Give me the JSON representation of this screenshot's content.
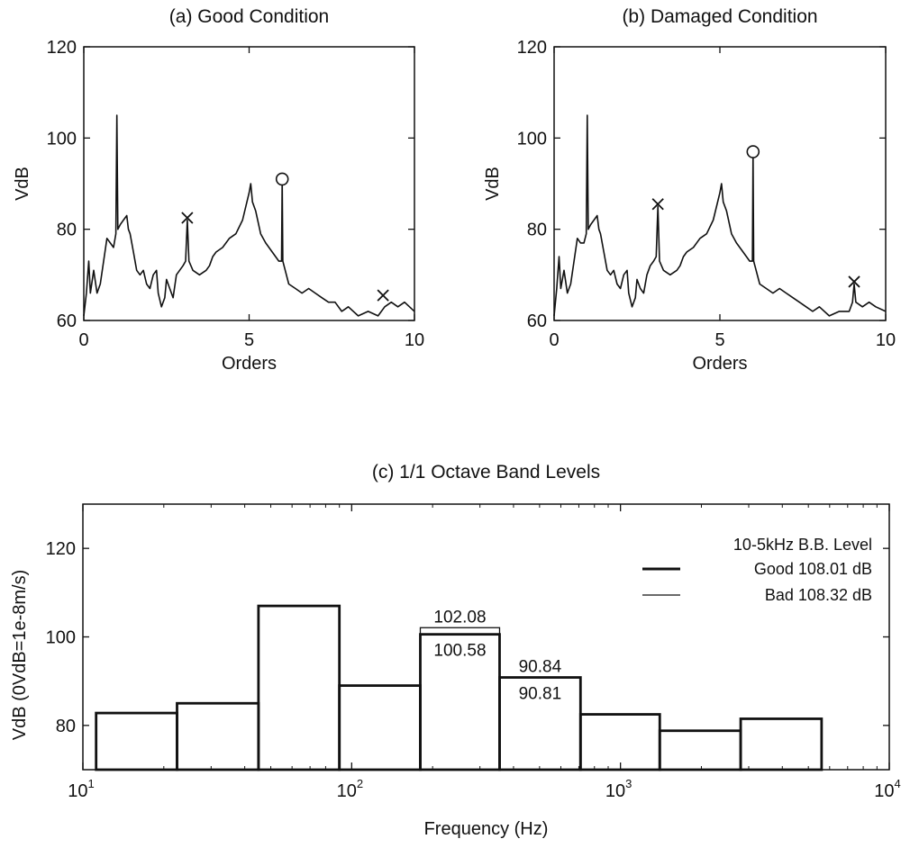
{
  "chart_data": [
    {
      "id": "a",
      "type": "line",
      "title": "(a) Good Condition",
      "xlabel": "Orders",
      "ylabel": "VdB",
      "xlim": [
        0,
        10
      ],
      "ylim": [
        60,
        120
      ],
      "xticks": [
        0,
        5,
        10
      ],
      "yticks": [
        60,
        80,
        100,
        120
      ],
      "grid": false,
      "series": [
        {
          "values": [
            [
              0,
              61
            ],
            [
              0.08,
              66
            ],
            [
              0.15,
              73
            ],
            [
              0.2,
              66
            ],
            [
              0.3,
              71
            ],
            [
              0.4,
              66
            ],
            [
              0.5,
              68
            ],
            [
              0.6,
              73
            ],
            [
              0.7,
              78
            ],
            [
              0.8,
              77
            ],
            [
              0.9,
              76
            ],
            [
              0.97,
              79
            ],
            [
              1.0,
              105
            ],
            [
              1.03,
              80
            ],
            [
              1.1,
              81
            ],
            [
              1.2,
              82
            ],
            [
              1.3,
              83
            ],
            [
              1.35,
              80
            ],
            [
              1.4,
              79
            ],
            [
              1.5,
              75
            ],
            [
              1.6,
              71
            ],
            [
              1.7,
              70
            ],
            [
              1.8,
              71
            ],
            [
              1.9,
              68
            ],
            [
              2.0,
              67
            ],
            [
              2.1,
              70
            ],
            [
              2.2,
              71
            ],
            [
              2.25,
              66
            ],
            [
              2.35,
              63
            ],
            [
              2.45,
              65
            ],
            [
              2.5,
              69
            ],
            [
              2.6,
              67
            ],
            [
              2.7,
              65
            ],
            [
              2.8,
              70
            ],
            [
              2.9,
              71
            ],
            [
              3.0,
              72
            ],
            [
              3.08,
              73
            ],
            [
              3.13,
              82
            ],
            [
              3.18,
              73
            ],
            [
              3.3,
              71
            ],
            [
              3.5,
              70
            ],
            [
              3.7,
              71
            ],
            [
              3.8,
              72
            ],
            [
              3.9,
              74
            ],
            [
              4.0,
              75
            ],
            [
              4.2,
              76
            ],
            [
              4.4,
              78
            ],
            [
              4.6,
              79
            ],
            [
              4.8,
              82
            ],
            [
              5.0,
              88
            ],
            [
              5.05,
              90
            ],
            [
              5.1,
              86
            ],
            [
              5.2,
              84
            ],
            [
              5.35,
              79
            ],
            [
              5.5,
              77
            ],
            [
              5.7,
              75
            ],
            [
              5.9,
              73
            ],
            [
              5.98,
              73
            ],
            [
              6.0,
              91
            ],
            [
              6.02,
              73
            ],
            [
              6.2,
              68
            ],
            [
              6.4,
              67
            ],
            [
              6.6,
              66
            ],
            [
              6.8,
              67
            ],
            [
              7.0,
              66
            ],
            [
              7.2,
              65
            ],
            [
              7.4,
              64
            ],
            [
              7.6,
              64
            ],
            [
              7.8,
              62
            ],
            [
              8.0,
              63
            ],
            [
              8.3,
              61
            ],
            [
              8.6,
              62
            ],
            [
              8.9,
              61
            ],
            [
              9.1,
              63
            ],
            [
              9.3,
              64
            ],
            [
              9.5,
              63
            ],
            [
              9.7,
              64
            ],
            [
              10.0,
              62
            ]
          ]
        }
      ],
      "markers": [
        {
          "x": 3.13,
          "y": 82.5,
          "symbol": "x"
        },
        {
          "x": 6.0,
          "y": 91,
          "symbol": "o"
        },
        {
          "x": 9.05,
          "y": 65.5,
          "symbol": "x"
        }
      ]
    },
    {
      "id": "b",
      "type": "line",
      "title": "(b) Damaged Condition",
      "xlabel": "Orders",
      "ylabel": "VdB",
      "xlim": [
        0,
        10
      ],
      "ylim": [
        60,
        120
      ],
      "xticks": [
        0,
        5,
        10
      ],
      "yticks": [
        60,
        80,
        100,
        120
      ],
      "grid": false,
      "series": [
        {
          "values": [
            [
              0,
              61
            ],
            [
              0.08,
              67
            ],
            [
              0.15,
              74
            ],
            [
              0.2,
              67
            ],
            [
              0.3,
              71
            ],
            [
              0.4,
              66
            ],
            [
              0.5,
              68
            ],
            [
              0.6,
              73
            ],
            [
              0.7,
              78
            ],
            [
              0.8,
              77
            ],
            [
              0.9,
              77
            ],
            [
              0.97,
              79
            ],
            [
              1.0,
              105
            ],
            [
              1.03,
              80
            ],
            [
              1.1,
              81
            ],
            [
              1.2,
              82
            ],
            [
              1.3,
              83
            ],
            [
              1.35,
              80
            ],
            [
              1.4,
              79
            ],
            [
              1.5,
              75
            ],
            [
              1.6,
              71
            ],
            [
              1.7,
              70
            ],
            [
              1.8,
              71
            ],
            [
              1.9,
              68
            ],
            [
              2.0,
              67
            ],
            [
              2.1,
              70
            ],
            [
              2.2,
              71
            ],
            [
              2.25,
              66
            ],
            [
              2.35,
              63
            ],
            [
              2.45,
              65
            ],
            [
              2.5,
              69
            ],
            [
              2.6,
              67
            ],
            [
              2.7,
              66
            ],
            [
              2.8,
              70
            ],
            [
              2.9,
              72
            ],
            [
              3.0,
              73
            ],
            [
              3.08,
              74
            ],
            [
              3.13,
              85
            ],
            [
              3.18,
              73
            ],
            [
              3.3,
              71
            ],
            [
              3.5,
              70
            ],
            [
              3.7,
              71
            ],
            [
              3.8,
              72
            ],
            [
              3.9,
              74
            ],
            [
              4.0,
              75
            ],
            [
              4.2,
              76
            ],
            [
              4.4,
              78
            ],
            [
              4.6,
              79
            ],
            [
              4.8,
              82
            ],
            [
              5.0,
              88
            ],
            [
              5.05,
              90
            ],
            [
              5.1,
              86
            ],
            [
              5.2,
              84
            ],
            [
              5.35,
              79
            ],
            [
              5.5,
              77
            ],
            [
              5.7,
              75
            ],
            [
              5.9,
              73
            ],
            [
              5.98,
              73
            ],
            [
              6.0,
              97
            ],
            [
              6.02,
              73
            ],
            [
              6.2,
              68
            ],
            [
              6.4,
              67
            ],
            [
              6.6,
              66
            ],
            [
              6.8,
              67
            ],
            [
              7.0,
              66
            ],
            [
              7.2,
              65
            ],
            [
              7.4,
              64
            ],
            [
              7.6,
              63
            ],
            [
              7.8,
              62
            ],
            [
              8.0,
              63
            ],
            [
              8.3,
              61
            ],
            [
              8.6,
              62
            ],
            [
              8.9,
              62
            ],
            [
              9.0,
              64
            ],
            [
              9.05,
              68
            ],
            [
              9.1,
              64
            ],
            [
              9.3,
              63
            ],
            [
              9.5,
              64
            ],
            [
              9.7,
              63
            ],
            [
              10.0,
              62
            ]
          ]
        }
      ],
      "markers": [
        {
          "x": 3.13,
          "y": 85.5,
          "symbol": "x"
        },
        {
          "x": 6.0,
          "y": 97,
          "symbol": "o"
        },
        {
          "x": 9.05,
          "y": 68.5,
          "symbol": "x"
        }
      ]
    },
    {
      "id": "c",
      "type": "bar",
      "title": "(c) 1/1 Octave Band Levels",
      "xlabel": "Frequency (Hz)",
      "ylabel": "VdB (0VdB=1e-8m/s)",
      "xscale": "log",
      "xlim": [
        10,
        10000
      ],
      "ylim": [
        70,
        130
      ],
      "xticks": [
        {
          "base": "10",
          "exp": "1"
        },
        {
          "base": "10",
          "exp": "2"
        },
        {
          "base": "10",
          "exp": "3"
        },
        {
          "base": "10",
          "exp": "4"
        }
      ],
      "yticks": [
        80,
        100,
        120
      ],
      "grid": false,
      "bands": [
        {
          "lo": 11.2,
          "hi": 22.4
        },
        {
          "lo": 22.4,
          "hi": 45
        },
        {
          "lo": 45,
          "hi": 90
        },
        {
          "lo": 90,
          "hi": 180
        },
        {
          "lo": 180,
          "hi": 355
        },
        {
          "lo": 355,
          "hi": 710
        },
        {
          "lo": 710,
          "hi": 1400
        },
        {
          "lo": 1400,
          "hi": 2800
        },
        {
          "lo": 2800,
          "hi": 5600
        }
      ],
      "series": [
        {
          "name": "Good 108.01 dB",
          "style": "thick",
          "values": [
            82.8,
            85,
            107,
            89,
            100.58,
            90.84,
            82.5,
            78.8,
            81.5
          ]
        },
        {
          "name": "Bad 108.32 dB",
          "style": "thin",
          "values": [
            82.8,
            85,
            107,
            89,
            102.08,
            90.81,
            82.5,
            78.8,
            81.5
          ]
        }
      ],
      "legend_title": "10-5kHz B.B. Level",
      "legend_position": "top-right",
      "annotations": [
        {
          "text": "102.08",
          "band": 4,
          "y": 102.08,
          "pos": "above"
        },
        {
          "text": "100.58",
          "band": 4,
          "y": 100.58,
          "pos": "below"
        },
        {
          "text": "90.84",
          "band": 5,
          "y": 90.84,
          "pos": "above"
        },
        {
          "text": "90.81",
          "band": 5,
          "y": 90.81,
          "pos": "below"
        }
      ]
    }
  ]
}
